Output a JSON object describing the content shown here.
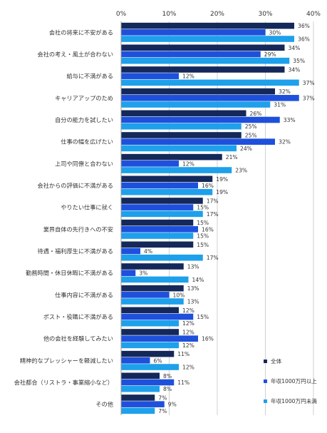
{
  "chart_data": {
    "type": "bar",
    "orientation": "horizontal",
    "xlim": [
      0,
      40
    ],
    "ticks": [
      "0%",
      "10%",
      "20%",
      "30%",
      "40%"
    ],
    "tick_values": [
      0,
      10,
      20,
      30,
      40
    ],
    "grid": true,
    "legend_position": "bottom-right",
    "value_suffix": "%",
    "categories": [
      "会社の将来に不安がある",
      "会社の考え・風土が合わない",
      "給与に不満がある",
      "キャリアアップのため",
      "自分の能力を試したい",
      "仕事の幅を広げたい",
      "上司や同僚と合わない",
      "会社からの評価に不満がある",
      "やりたい仕事に就く",
      "業界自体の先行きへの不安",
      "待遇・福利厚生に不満がある",
      "勤務時間・休日休暇に不満がある",
      "仕事内容に不満がある",
      "ポスト・役職に不満がある",
      "他の会社を経験してみたい",
      "精神的なプレッシャーを軽減したい",
      "会社都合（リストラ・事業縮小など）",
      "その他"
    ],
    "series": [
      {
        "name": "全体",
        "color": "#14285a",
        "values": [
          36,
          34,
          34,
          32,
          26,
          25,
          21,
          19,
          17,
          15,
          15,
          13,
          13,
          12,
          12,
          11,
          8,
          7
        ]
      },
      {
        "name": "年収1000万円以上",
        "color": "#1e50dc",
        "values": [
          30,
          29,
          12,
          37,
          33,
          32,
          12,
          16,
          15,
          16,
          4,
          3,
          10,
          15,
          16,
          6,
          11,
          9
        ]
      },
      {
        "name": "年収1000万円未満",
        "color": "#1ea0eb",
        "values": [
          36,
          35,
          37,
          31,
          25,
          24,
          23,
          19,
          17,
          15,
          17,
          14,
          13,
          12,
          12,
          12,
          8,
          7
        ]
      }
    ]
  }
}
